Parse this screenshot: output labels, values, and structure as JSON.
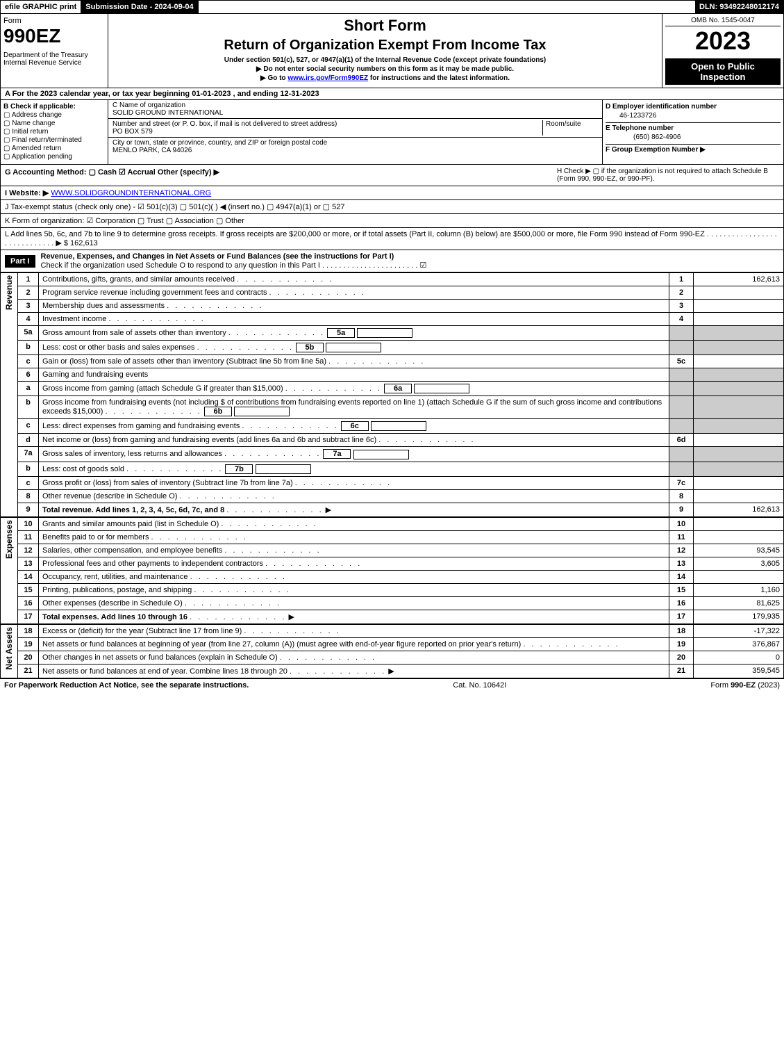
{
  "top": {
    "efile": "efile GRAPHIC print",
    "submission": "Submission Date - 2024-09-04",
    "dln": "DLN: 93492248012174"
  },
  "header": {
    "form_word": "Form",
    "form_number": "990EZ",
    "dept": "Department of the Treasury\nInternal Revenue Service",
    "short_form": "Short Form",
    "title": "Return of Organization Exempt From Income Tax",
    "subtitle1": "Under section 501(c), 527, or 4947(a)(1) of the Internal Revenue Code (except private foundations)",
    "subtitle2": "▶ Do not enter social security numbers on this form as it may be made public.",
    "subtitle3_pre": "▶ Go to ",
    "subtitle3_link": "www.irs.gov/Form990EZ",
    "subtitle3_post": " for instructions and the latest information.",
    "omb": "OMB No. 1545-0047",
    "year": "2023",
    "badge": "Open to Public Inspection"
  },
  "A": "A  For the 2023 calendar year, or tax year beginning 01-01-2023 , and ending 12-31-2023",
  "B": {
    "label": "B  Check if applicable:",
    "opts": [
      "Address change",
      "Name change",
      "Initial return",
      "Final return/terminated",
      "Amended return",
      "Application pending"
    ]
  },
  "C": {
    "name_label": "C Name of organization",
    "name": "SOLID GROUND INTERNATIONAL",
    "street_label": "Number and street (or P. O. box, if mail is not delivered to street address)",
    "room_label": "Room/suite",
    "street": "PO BOX 579",
    "city_label": "City or town, state or province, country, and ZIP or foreign postal code",
    "city": "MENLO PARK, CA  94026"
  },
  "D": {
    "ein_label": "D Employer identification number",
    "ein": "46-1233726",
    "phone_label": "E Telephone number",
    "phone": "(650) 862-4906",
    "group_label": "F Group Exemption Number  ▶"
  },
  "G": "G Accounting Method:   ▢ Cash   ☑ Accrual   Other (specify) ▶",
  "H": "H  Check ▶  ▢  if the organization is not required to attach Schedule B (Form 990, 990-EZ, or 990-PF).",
  "I_pre": "I Website: ▶",
  "I_link": "WWW.SOLIDGROUNDINTERNATIONAL.ORG",
  "J": "J Tax-exempt status (check only one) -  ☑ 501(c)(3)  ▢ 501(c)(  ) ◀ (insert no.)  ▢ 4947(a)(1) or  ▢ 527",
  "K": "K Form of organization:   ☑ Corporation   ▢ Trust   ▢ Association   ▢ Other",
  "L": "L Add lines 5b, 6c, and 7b to line 9 to determine gross receipts. If gross receipts are $200,000 or more, or if total assets (Part II, column (B) below) are $500,000 or more, file Form 990 instead of Form 990-EZ . . . . . . . . . . . . . . . . . . . . . . . . . . . . . ▶ $ 162,613",
  "part1": {
    "tag": "Part I",
    "title": "Revenue, Expenses, and Changes in Net Assets or Fund Balances (see the instructions for Part I)",
    "check": "Check if the organization used Schedule O to respond to any question in this Part I . . . . . . . . . . . . . . . . . . . . . . .  ☑"
  },
  "side_labels": {
    "rev": "Revenue",
    "exp": "Expenses",
    "na": "Net Assets"
  },
  "lines": [
    {
      "n": "1",
      "d": "Contributions, gifts, grants, and similar amounts received",
      "r": "1",
      "v": "162,613"
    },
    {
      "n": "2",
      "d": "Program service revenue including government fees and contracts",
      "r": "2",
      "v": ""
    },
    {
      "n": "3",
      "d": "Membership dues and assessments",
      "r": "3",
      "v": ""
    },
    {
      "n": "4",
      "d": "Investment income",
      "r": "4",
      "v": ""
    },
    {
      "n": "5a",
      "d": "Gross amount from sale of assets other than inventory",
      "sub": "5a",
      "grey": true
    },
    {
      "n": "b",
      "d": "Less: cost or other basis and sales expenses",
      "sub": "5b",
      "grey": true
    },
    {
      "n": "c",
      "d": "Gain or (loss) from sale of assets other than inventory (Subtract line 5b from line 5a)",
      "r": "5c",
      "v": ""
    },
    {
      "n": "6",
      "d": "Gaming and fundraising events",
      "grey": true
    },
    {
      "n": "a",
      "d": "Gross income from gaming (attach Schedule G if greater than $15,000)",
      "sub": "6a",
      "grey": true
    },
    {
      "n": "b",
      "d": "Gross income from fundraising events (not including $                of contributions from fundraising events reported on line 1) (attach Schedule G if the sum of such gross income and contributions exceeds $15,000)",
      "sub": "6b",
      "grey": true
    },
    {
      "n": "c",
      "d": "Less: direct expenses from gaming and fundraising events",
      "sub": "6c",
      "grey": true
    },
    {
      "n": "d",
      "d": "Net income or (loss) from gaming and fundraising events (add lines 6a and 6b and subtract line 6c)",
      "r": "6d",
      "v": ""
    },
    {
      "n": "7a",
      "d": "Gross sales of inventory, less returns and allowances",
      "sub": "7a",
      "grey": true
    },
    {
      "n": "b",
      "d": "Less: cost of goods sold",
      "sub": "7b",
      "grey": true
    },
    {
      "n": "c",
      "d": "Gross profit or (loss) from sales of inventory (Subtract line 7b from line 7a)",
      "r": "7c",
      "v": ""
    },
    {
      "n": "8",
      "d": "Other revenue (describe in Schedule O)",
      "r": "8",
      "v": ""
    },
    {
      "n": "9",
      "d": "Total revenue. Add lines 1, 2, 3, 4, 5c, 6d, 7c, and 8",
      "r": "9",
      "v": "162,613",
      "bold": true,
      "arrow": true
    }
  ],
  "exp_lines": [
    {
      "n": "10",
      "d": "Grants and similar amounts paid (list in Schedule O)",
      "r": "10",
      "v": ""
    },
    {
      "n": "11",
      "d": "Benefits paid to or for members",
      "r": "11",
      "v": ""
    },
    {
      "n": "12",
      "d": "Salaries, other compensation, and employee benefits",
      "r": "12",
      "v": "93,545"
    },
    {
      "n": "13",
      "d": "Professional fees and other payments to independent contractors",
      "r": "13",
      "v": "3,605"
    },
    {
      "n": "14",
      "d": "Occupancy, rent, utilities, and maintenance",
      "r": "14",
      "v": ""
    },
    {
      "n": "15",
      "d": "Printing, publications, postage, and shipping",
      "r": "15",
      "v": "1,160"
    },
    {
      "n": "16",
      "d": "Other expenses (describe in Schedule O)",
      "r": "16",
      "v": "81,625"
    },
    {
      "n": "17",
      "d": "Total expenses. Add lines 10 through 16",
      "r": "17",
      "v": "179,935",
      "bold": true,
      "arrow": true
    }
  ],
  "na_lines": [
    {
      "n": "18",
      "d": "Excess or (deficit) for the year (Subtract line 17 from line 9)",
      "r": "18",
      "v": "-17,322"
    },
    {
      "n": "19",
      "d": "Net assets or fund balances at beginning of year (from line 27, column (A)) (must agree with end-of-year figure reported on prior year's return)",
      "r": "19",
      "v": "376,867"
    },
    {
      "n": "20",
      "d": "Other changes in net assets or fund balances (explain in Schedule O)",
      "r": "20",
      "v": "0"
    },
    {
      "n": "21",
      "d": "Net assets or fund balances at end of year. Combine lines 18 through 20",
      "r": "21",
      "v": "359,545",
      "arrow": true
    }
  ],
  "footer": {
    "left": "For Paperwork Reduction Act Notice, see the separate instructions.",
    "mid": "Cat. No. 10642I",
    "right_pre": "Form ",
    "right_bold": "990-EZ",
    "right_post": " (2023)"
  }
}
